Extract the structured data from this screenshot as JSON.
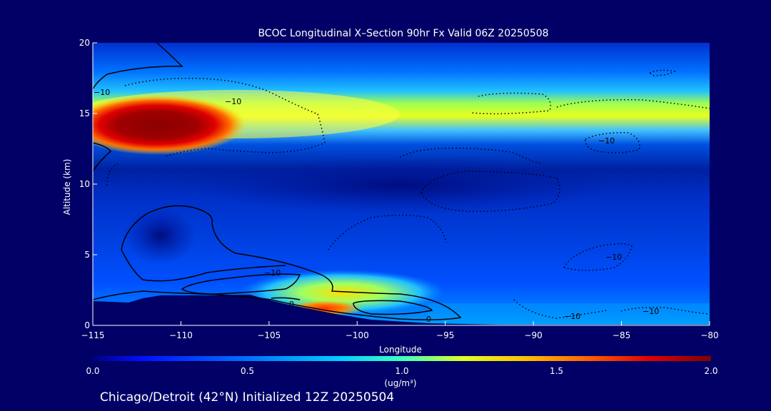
{
  "chart_data": {
    "type": "heatmap",
    "title": "BCOC Longitudinal X–Section 90hr  Fx Valid 06Z 20250508",
    "xlabel": "Longitude",
    "ylabel": "Altitude (km)",
    "xlim": [
      -115,
      -80
    ],
    "ylim": [
      0,
      20
    ],
    "x_ticks": [
      "−115",
      "−110",
      "−105",
      "−100",
      "−95",
      "−90",
      "−85",
      "−80"
    ],
    "x_tick_values": [
      -115,
      -110,
      -105,
      -100,
      -95,
      -90,
      -85,
      -80
    ],
    "y_ticks": [
      "0",
      "5",
      "10",
      "15",
      "20"
    ],
    "y_tick_values": [
      0,
      5,
      10,
      15,
      20
    ],
    "colorbar": {
      "label": "(ug/m³)",
      "min": 0.0,
      "max": 2.0,
      "ticks": [
        "0.0",
        "0.5",
        "1.0",
        "1.5",
        "2.0"
      ],
      "tick_values": [
        0.0,
        0.5,
        1.0,
        1.5,
        2.0
      ]
    },
    "features": [
      {
        "name": "upper plume core",
        "lon_range": [
          -115,
          -107
        ],
        "alt_range": [
          12.5,
          16
        ],
        "value": 2.0
      },
      {
        "name": "upper layer",
        "lon_range": [
          -107,
          -80
        ],
        "alt_range": [
          12.5,
          15.5
        ],
        "value": 0.9
      },
      {
        "name": "low-level plume",
        "lon_range": [
          -104,
          -94
        ],
        "alt_range": [
          0.5,
          3.5
        ],
        "value": 1.3
      }
    ],
    "contour_labels": [
      "−10",
      "−10",
      "−10",
      "0",
      "0",
      "−10",
      "−10",
      "−10",
      "−10"
    ],
    "footer": "Chicago/Detroit (42°N) Initialized 12Z 20250504",
    "colors": {
      "background": "#000066",
      "scale": [
        "#000080",
        "#0010ff",
        "#0080ff",
        "#00e0ff",
        "#ffff00",
        "#ff8000",
        "#ff0000",
        "#800000"
      ]
    }
  }
}
